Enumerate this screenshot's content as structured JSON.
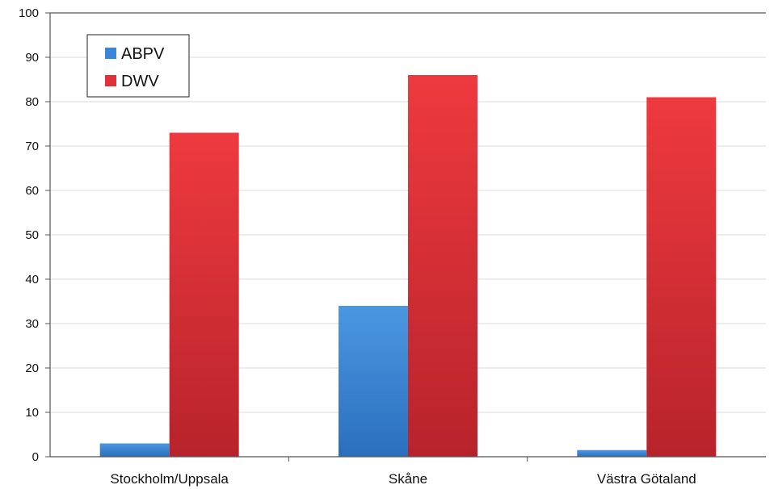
{
  "chart_data": {
    "type": "bar",
    "categories": [
      "Stockholm/Uppsala",
      "Skåne",
      "Västra Götaland"
    ],
    "series": [
      {
        "name": "ABPV",
        "values": [
          3,
          34,
          1.5
        ],
        "color": "#3b86d6"
      },
      {
        "name": "DWV",
        "values": [
          73,
          86,
          81
        ],
        "color": "#e0303a"
      }
    ],
    "ylim": [
      0,
      100
    ],
    "yticks": [
      0,
      10,
      20,
      30,
      40,
      50,
      60,
      70,
      80,
      90,
      100
    ],
    "grid": true,
    "legend": "top-left",
    "title": "",
    "xlabel": "",
    "ylabel": ""
  }
}
